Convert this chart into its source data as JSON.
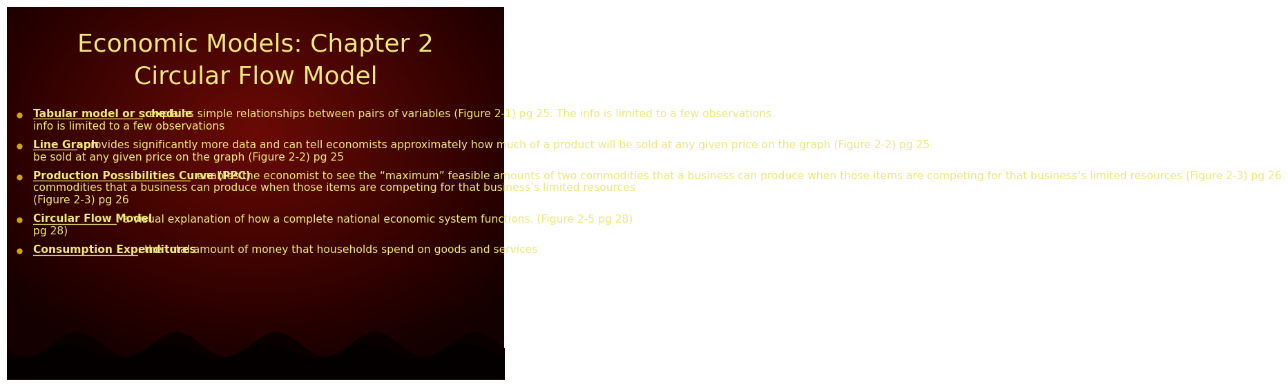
{
  "title_line1": "Economic Models: Chapter 2",
  "title_line2": "Circular Flow Model",
  "title_color": "#EDE87A",
  "title_fontsize": 26,
  "bullet_color": "#EDE87A",
  "bullet_marker_color": "#D4A017",
  "body_fontsize": 11.2,
  "bullets": [
    {
      "bold_part": "Tabular model or schedule",
      "rest": ": explains simple relationships between pairs of variables (Figure 2-1) pg 25. The info is limited to a few observations"
    },
    {
      "bold_part": "Line Graph",
      "rest": ": provides significantly more data and can tell economists approximately how much of a product will be sold at any given price on the graph (Figure 2-2) pg 25"
    },
    {
      "bold_part": "Production Possibilities Curve (PPC)",
      "rest": ": enables the economist to see the “maximum” feasible amounts of two commodities that a business can produce when those items are competing for that business’s limited resources (Figure 2-3) pg 26"
    },
    {
      "bold_part": "Circular Flow Model",
      "rest": ": a visual explanation of how a complete national economic system functions. (Figure 2-5 pg 28)"
    },
    {
      "bold_part": "Consumption Expenditures",
      "rest": ": the total amount of money that households spend on goods and services"
    }
  ]
}
